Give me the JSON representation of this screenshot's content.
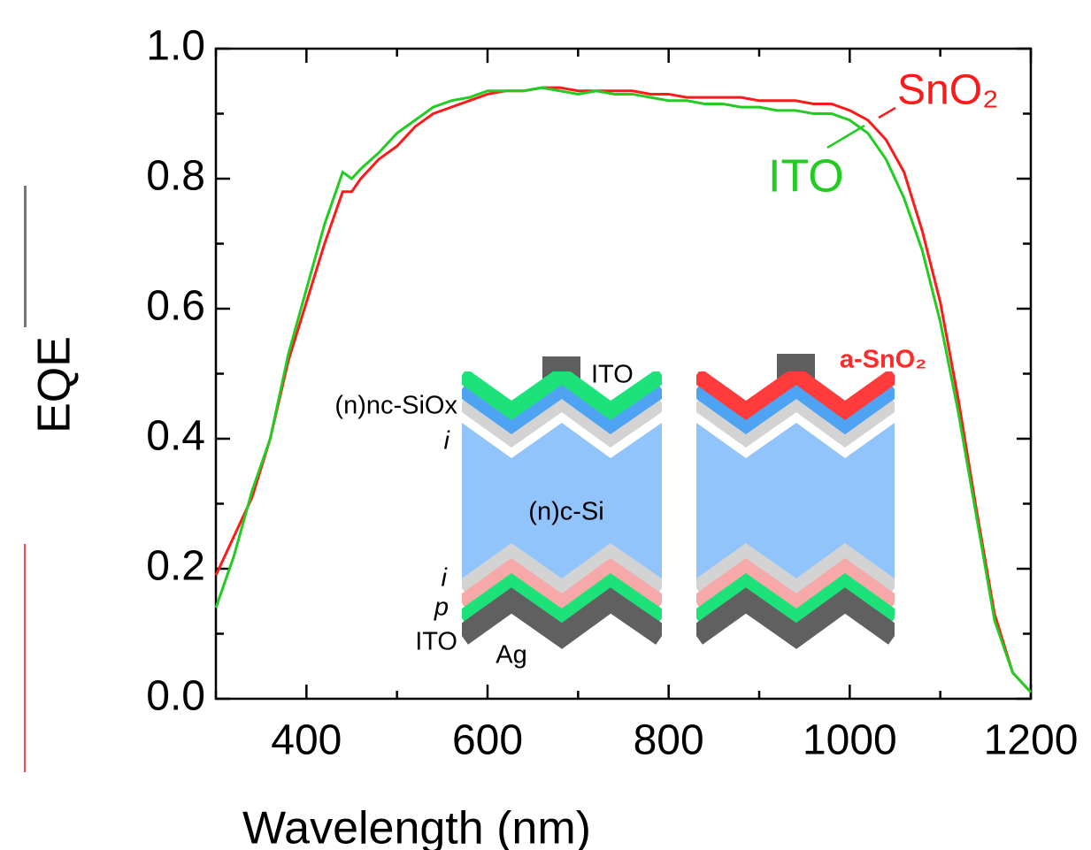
{
  "chart_data": {
    "type": "line",
    "xlabel": "Wavelength (nm)",
    "ylabel": "EQE",
    "xlim": [
      300,
      1200
    ],
    "ylim": [
      0,
      1
    ],
    "xticks": [
      400,
      600,
      800,
      1000,
      1200
    ],
    "xminorticks": [
      300,
      500,
      700,
      900,
      1100
    ],
    "yticks": [
      {
        "value": 0,
        "label": "0.0"
      },
      0.2,
      0.4,
      0.6,
      0.8,
      {
        "value": 1,
        "label": "1.0"
      }
    ],
    "yminorticks": [
      0.1,
      0.3,
      0.5,
      0.7,
      0.9
    ],
    "x": [
      300,
      320,
      340,
      360,
      380,
      400,
      420,
      440,
      450,
      460,
      480,
      500,
      520,
      540,
      560,
      580,
      600,
      620,
      640,
      660,
      680,
      700,
      720,
      740,
      760,
      780,
      800,
      820,
      840,
      860,
      880,
      900,
      920,
      940,
      960,
      980,
      1000,
      1020,
      1040,
      1060,
      1080,
      1100,
      1120,
      1140,
      1160,
      1180,
      1200
    ],
    "series": [
      {
        "name": "SnO₂",
        "color": "#ff1a1a",
        "values": [
          0.19,
          0.25,
          0.31,
          0.4,
          0.52,
          0.61,
          0.7,
          0.78,
          0.78,
          0.8,
          0.83,
          0.85,
          0.88,
          0.9,
          0.91,
          0.92,
          0.93,
          0.935,
          0.935,
          0.94,
          0.94,
          0.935,
          0.935,
          0.935,
          0.935,
          0.93,
          0.93,
          0.925,
          0.925,
          0.925,
          0.925,
          0.92,
          0.92,
          0.92,
          0.915,
          0.915,
          0.905,
          0.89,
          0.86,
          0.81,
          0.72,
          0.61,
          0.46,
          0.29,
          0.13,
          0.04,
          0.01
        ]
      },
      {
        "name": "ITO",
        "color": "#22cc22",
        "values": [
          0.14,
          0.22,
          0.32,
          0.4,
          0.53,
          0.63,
          0.73,
          0.81,
          0.8,
          0.815,
          0.84,
          0.87,
          0.89,
          0.91,
          0.92,
          0.925,
          0.935,
          0.935,
          0.935,
          0.94,
          0.935,
          0.93,
          0.935,
          0.93,
          0.93,
          0.925,
          0.92,
          0.92,
          0.915,
          0.915,
          0.91,
          0.91,
          0.905,
          0.905,
          0.9,
          0.9,
          0.89,
          0.87,
          0.83,
          0.77,
          0.69,
          0.58,
          0.44,
          0.28,
          0.12,
          0.04,
          0.01
        ]
      }
    ],
    "inset_labels": {
      "left_top": "ITO",
      "n_layer": "(n)nc-SiOx",
      "i_top": "i",
      "wafer": "(n)c-Si",
      "i_bottom": "i",
      "p_layer": "p",
      "ito_bottom": "ITO",
      "ag": "Ag",
      "right_top": "a-SnO₂"
    }
  }
}
